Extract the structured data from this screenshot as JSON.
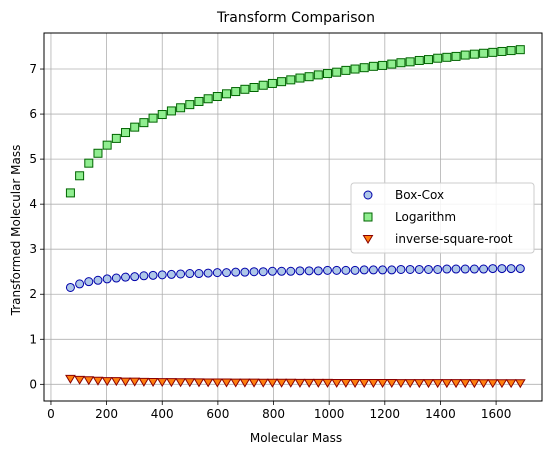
{
  "chart_data": {
    "type": "scatter",
    "title": "Transform Comparison",
    "xlabel": "Molecular Mass",
    "ylabel": "Transformed Molecular Mass",
    "xlim": [
      -25,
      1765
    ],
    "ylim": [
      -0.37,
      7.8
    ],
    "xticks": [
      0,
      200,
      400,
      600,
      800,
      1000,
      1200,
      1400,
      1600
    ],
    "yticks": [
      0,
      1,
      2,
      3,
      4,
      5,
      6,
      7
    ],
    "grid": true,
    "legend_position": "center-right",
    "x": [
      70,
      103,
      136,
      169,
      202,
      235,
      268,
      301,
      334,
      367,
      400,
      433,
      466,
      499,
      532,
      565,
      598,
      631,
      664,
      697,
      730,
      763,
      796,
      829,
      862,
      895,
      928,
      961,
      994,
      1027,
      1060,
      1093,
      1126,
      1159,
      1192,
      1225,
      1258,
      1291,
      1324,
      1357,
      1390,
      1423,
      1456,
      1489,
      1522,
      1555,
      1588,
      1621,
      1654,
      1687
    ],
    "series": [
      {
        "name": "Box-Cox",
        "marker": "circle",
        "fill": "#aec7e8",
        "edge": "#0000aa",
        "values": [
          2.15,
          2.23,
          2.28,
          2.31,
          2.34,
          2.36,
          2.38,
          2.39,
          2.41,
          2.42,
          2.43,
          2.44,
          2.45,
          2.46,
          2.46,
          2.47,
          2.48,
          2.48,
          2.49,
          2.49,
          2.5,
          2.5,
          2.51,
          2.51,
          2.51,
          2.52,
          2.52,
          2.52,
          2.53,
          2.53,
          2.53,
          2.53,
          2.54,
          2.54,
          2.54,
          2.54,
          2.55,
          2.55,
          2.55,
          2.55,
          2.55,
          2.56,
          2.56,
          2.56,
          2.56,
          2.56,
          2.57,
          2.57,
          2.57,
          2.57
        ]
      },
      {
        "name": "Logarithm",
        "marker": "square",
        "fill": "#90ee90",
        "edge": "#006400",
        "values": [
          4.25,
          4.63,
          4.91,
          5.13,
          5.31,
          5.46,
          5.59,
          5.71,
          5.81,
          5.91,
          5.99,
          6.07,
          6.14,
          6.21,
          6.28,
          6.34,
          6.39,
          6.45,
          6.5,
          6.55,
          6.59,
          6.64,
          6.68,
          6.72,
          6.76,
          6.8,
          6.83,
          6.87,
          6.9,
          6.93,
          6.97,
          7.0,
          7.03,
          7.06,
          7.08,
          7.11,
          7.14,
          7.16,
          7.19,
          7.21,
          7.24,
          7.26,
          7.28,
          7.31,
          7.33,
          7.35,
          7.37,
          7.39,
          7.41,
          7.43
        ]
      },
      {
        "name": "inverse-square-root",
        "marker": "triangle-down",
        "fill": "#ff7f0e",
        "edge": "#8b0000",
        "values": [
          0.12,
          0.1,
          0.09,
          0.08,
          0.07,
          0.07,
          0.06,
          0.06,
          0.055,
          0.052,
          0.05,
          0.048,
          0.046,
          0.045,
          0.043,
          0.042,
          0.041,
          0.04,
          0.039,
          0.038,
          0.037,
          0.036,
          0.035,
          0.035,
          0.034,
          0.033,
          0.033,
          0.032,
          0.032,
          0.031,
          0.031,
          0.03,
          0.03,
          0.029,
          0.029,
          0.029,
          0.028,
          0.028,
          0.027,
          0.027,
          0.027,
          0.027,
          0.026,
          0.026,
          0.026,
          0.025,
          0.025,
          0.025,
          0.025,
          0.024
        ]
      }
    ]
  }
}
